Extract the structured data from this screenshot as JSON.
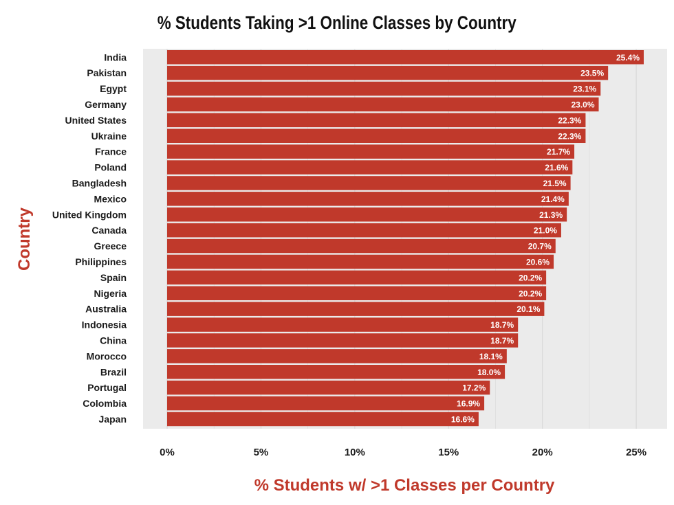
{
  "chart_data": {
    "type": "bar",
    "orientation": "horizontal",
    "title": "% Students Taking >1 Online Classes by Country",
    "xlabel": "% Students w/ >1 Classes per Country",
    "ylabel": "Country",
    "categories": [
      "India",
      "Pakistan",
      "Egypt",
      "Germany",
      "United States",
      "Ukraine",
      "France",
      "Poland",
      "Bangladesh",
      "Mexico",
      "United Kingdom",
      "Canada",
      "Greece",
      "Philippines",
      "Spain",
      "Nigeria",
      "Australia",
      "Indonesia",
      "China",
      "Morocco",
      "Brazil",
      "Portugal",
      "Colombia",
      "Japan"
    ],
    "values": [
      25.4,
      23.5,
      23.1,
      23.0,
      22.3,
      22.3,
      21.7,
      21.6,
      21.5,
      21.4,
      21.3,
      21.0,
      20.7,
      20.6,
      20.2,
      20.2,
      20.1,
      18.7,
      18.7,
      18.1,
      18.0,
      17.2,
      16.9,
      16.6
    ],
    "value_labels": [
      "25.4%",
      "23.5%",
      "23.1%",
      "23.0%",
      "22.3%",
      "22.3%",
      "21.7%",
      "21.6%",
      "21.5%",
      "21.4%",
      "21.3%",
      "21.0%",
      "20.7%",
      "20.6%",
      "20.2%",
      "20.2%",
      "20.1%",
      "18.7%",
      "18.7%",
      "18.1%",
      "18.0%",
      "17.2%",
      "16.9%",
      "16.6%"
    ],
    "xticks": [
      0,
      5,
      10,
      15,
      20,
      25
    ],
    "xtick_labels": [
      "0%",
      "5%",
      "10%",
      "15%",
      "20%",
      "25%"
    ],
    "xlim": [
      0,
      26.5
    ],
    "grid": true,
    "legend": "none",
    "colors": {
      "bar": "#c0392b",
      "panel_background": "#ebebeb",
      "grid": "#d9d9d9",
      "axis_title": "#c0392b",
      "value_label": "#ffffff"
    }
  }
}
